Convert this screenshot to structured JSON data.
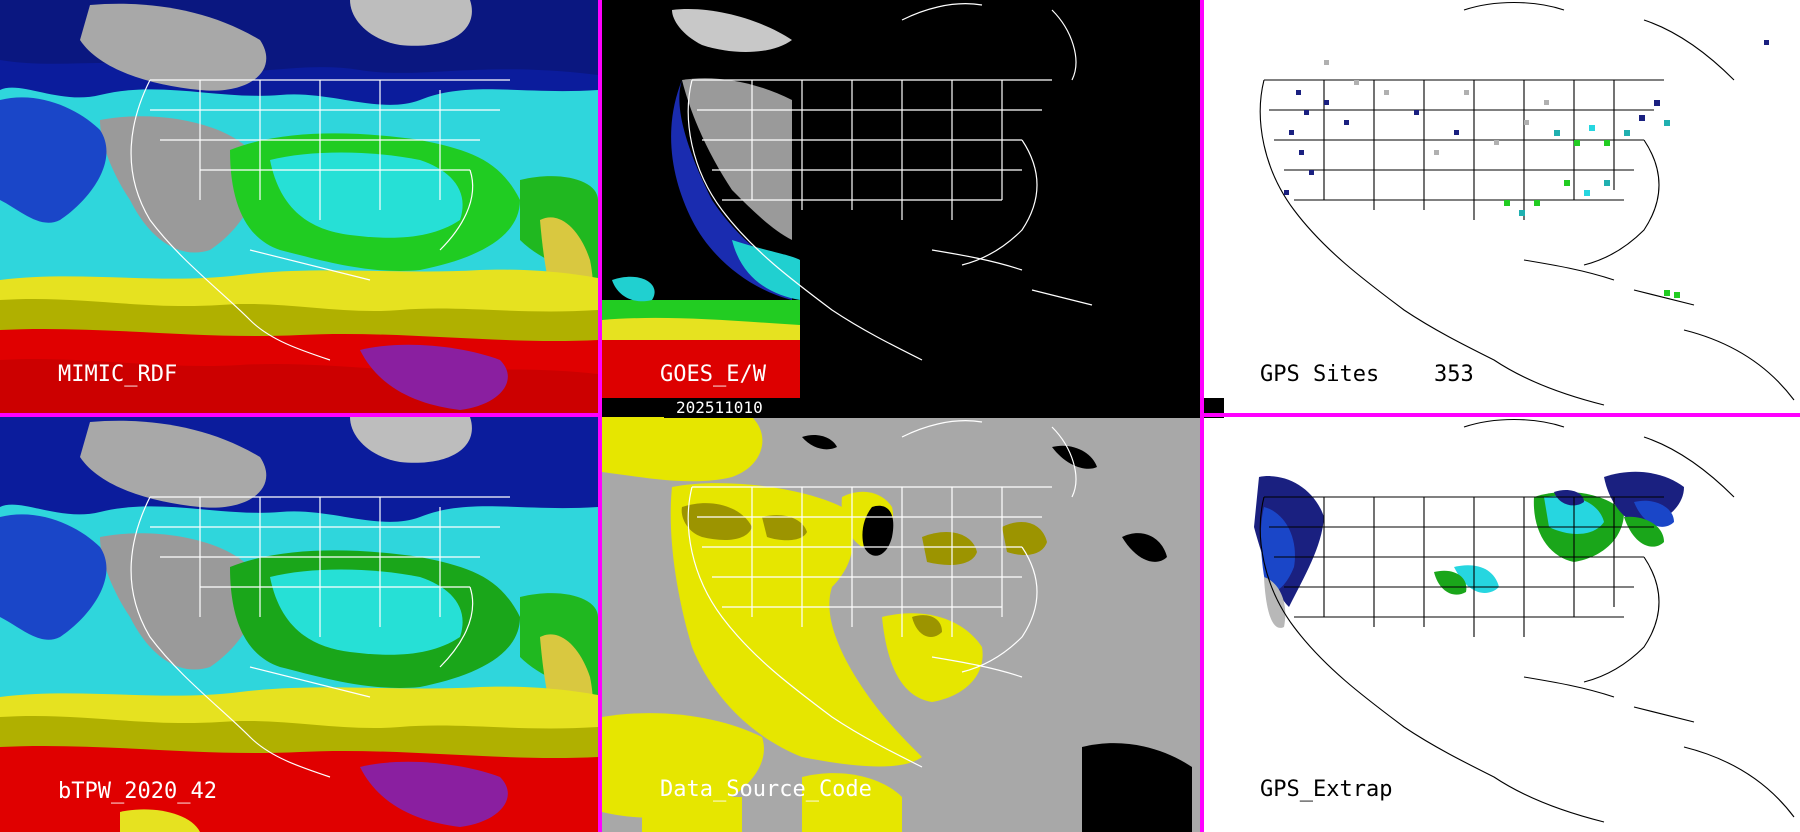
{
  "panels": [
    {
      "id": "mimic-rdf",
      "label": "MIMIC_RDF"
    },
    {
      "id": "goes-ew",
      "label": "GOES_E/W"
    },
    {
      "id": "gps-sites",
      "label": "GPS Sites",
      "count": "353"
    },
    {
      "id": "btpw",
      "label": "bTPW_2020_42"
    },
    {
      "id": "data-source",
      "label": "Data_Source_Code"
    },
    {
      "id": "gps-extrap",
      "label": "GPS_Extrap"
    }
  ],
  "timestamp": "202511010",
  "colors": {
    "divider": "#ff00ff",
    "ocean_cyan": "#2ee6e6",
    "moist_green": "#22cc22",
    "moist_yellow": "#e8e000",
    "moist_red": "#e00000",
    "dry_blue": "#0a1a9a",
    "cloud_gray": "#9a9a9a",
    "source_gray": "#a8a8a8",
    "source_yellow": "#e6e600",
    "source_olive": "#9c9400"
  }
}
